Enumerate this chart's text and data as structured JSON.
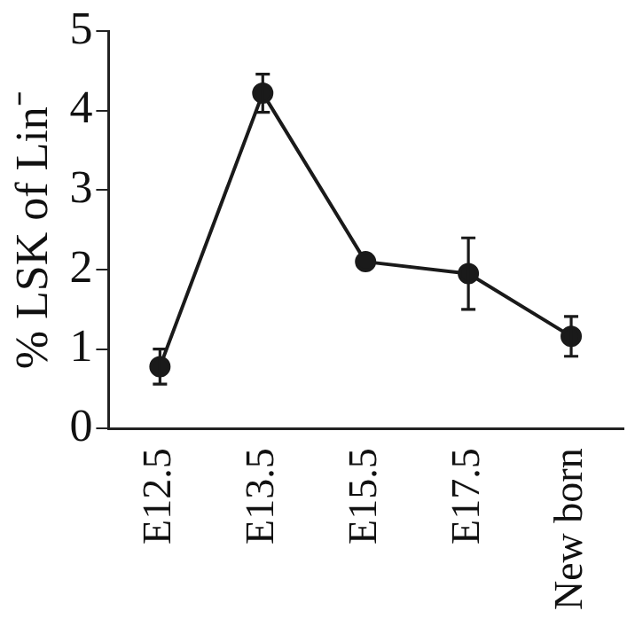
{
  "chart_data": {
    "type": "line",
    "ylabel": "% LSK of Lin⁻",
    "categories": [
      "E12.5",
      "E13.5",
      "E15.5",
      "E17.5",
      "New born"
    ],
    "series": [
      {
        "color": "#1a1a1a",
        "values": [
          0.78,
          4.22,
          2.1,
          1.95,
          1.16
        ],
        "errors": [
          0.22,
          0.24,
          null,
          0.45,
          0.25
        ]
      }
    ],
    "ylim": [
      0,
      5
    ],
    "yticks": [
      0,
      1,
      2,
      3,
      4,
      5
    ],
    "grid": false,
    "legend": false,
    "marker": "circle",
    "line_style": "solid"
  }
}
